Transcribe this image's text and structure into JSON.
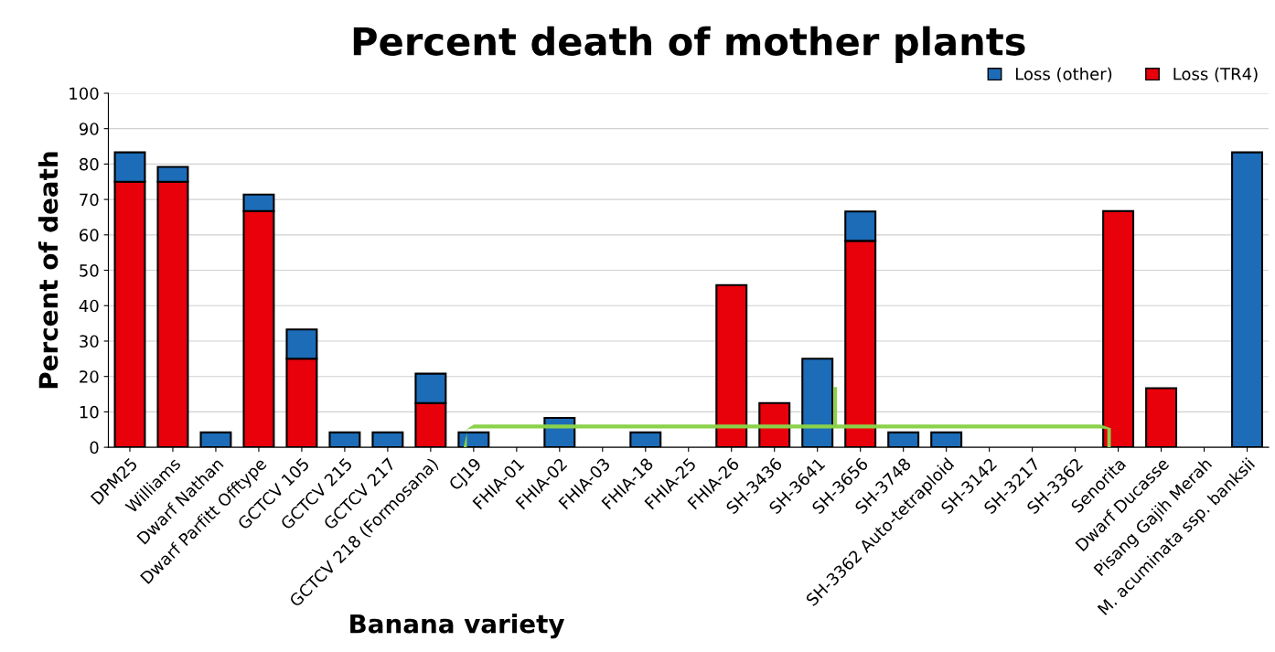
{
  "chart_data": {
    "type": "bar",
    "title": "Percent death of mother plants",
    "xlabel": "Banana variety",
    "ylabel": "Percent of death",
    "categories": [
      "DPM25",
      "Williams",
      "Dwarf Nathan",
      "Dwarf Parfitt Offtype",
      "GCTCV 105",
      "GCTCV 215",
      "GCTCV 217",
      "GCTCV 218 (Formosana)",
      "CJ19",
      "FHIA-01",
      "FHIA-02",
      "FHIA-03",
      "FHIA-18",
      "FHIA-25",
      "FHIA-26",
      "SH-3436",
      "SH-3641",
      "SH-3656",
      "SH-3748",
      "SH-3362 Auto-tetraploid",
      "SH-3142",
      "SH-3217",
      "SH-3362",
      "Senorita",
      "Dwarf Ducasse",
      "Pisang Gajih Merah",
      "M. acuminata ssp. banksii"
    ],
    "stacked": true,
    "series": [
      {
        "name": "Loss (TR4)",
        "color": "#e8000b",
        "values": [
          75,
          75,
          0,
          66.7,
          25,
          0,
          0,
          12.5,
          0,
          0,
          0,
          0,
          0,
          0,
          45.8,
          12.5,
          0,
          58.3,
          0,
          0,
          0,
          0,
          0,
          66.7,
          16.7,
          0,
          0
        ]
      },
      {
        "name": "Loss (other)",
        "color": "#1c6cb8",
        "values": [
          8.3,
          4.2,
          4.2,
          4.7,
          8.3,
          4.2,
          4.2,
          8.3,
          4.2,
          0,
          8.3,
          0,
          4.2,
          0,
          0,
          0,
          25,
          8.3,
          4.2,
          4.2,
          0,
          0,
          0,
          0,
          0,
          0,
          83.3
        ]
      }
    ],
    "ylim": [
      0,
      100
    ],
    "yticks": [
      0,
      10,
      20,
      30,
      40,
      50,
      60,
      70,
      80,
      90,
      100
    ],
    "grid": "y",
    "legend": "top right"
  }
}
